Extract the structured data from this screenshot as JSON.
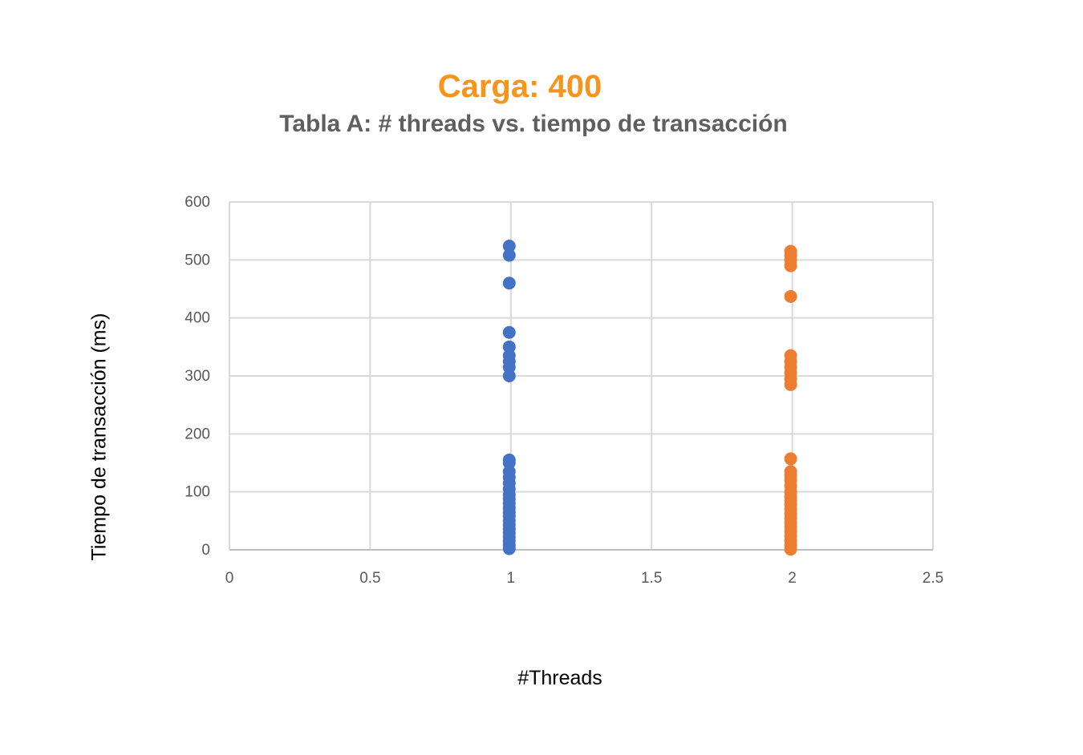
{
  "chart_data": {
    "type": "scatter",
    "title": "Carga: 400",
    "subtitle": "Tabla A: # threads vs. tiempo de transacción",
    "xlabel": "#Threads",
    "ylabel": "Tiempo de transacción (ms)",
    "xlim": [
      0,
      2.5
    ],
    "ylim": [
      0,
      600
    ],
    "x_ticks": [
      "0",
      "0.5",
      "1",
      "1.5",
      "2",
      "2.5"
    ],
    "y_ticks": [
      "0",
      "100",
      "200",
      "300",
      "400",
      "500",
      "600"
    ],
    "grid": true,
    "legend": "none",
    "series": [
      {
        "color": "#4472c4",
        "points": [
          [
            1,
            524
          ],
          [
            1,
            508
          ],
          [
            1,
            460
          ],
          [
            1,
            375
          ],
          [
            1,
            350
          ],
          [
            1,
            335
          ],
          [
            1,
            325
          ],
          [
            1,
            315
          ],
          [
            1,
            300
          ],
          [
            1,
            155
          ],
          [
            1,
            150
          ],
          [
            1,
            135
          ],
          [
            1,
            125
          ],
          [
            1,
            115
          ],
          [
            1,
            105
          ],
          [
            1,
            95
          ],
          [
            1,
            88
          ],
          [
            1,
            80
          ],
          [
            1,
            72
          ],
          [
            1,
            65
          ],
          [
            1,
            58
          ],
          [
            1,
            50
          ],
          [
            1,
            43
          ],
          [
            1,
            36
          ],
          [
            1,
            29
          ],
          [
            1,
            22
          ],
          [
            1,
            15
          ],
          [
            1,
            8
          ],
          [
            1,
            2
          ]
        ]
      },
      {
        "color": "#ed7d31",
        "points": [
          [
            2,
            515
          ],
          [
            2,
            508
          ],
          [
            2,
            500
          ],
          [
            2,
            490
          ],
          [
            2,
            437
          ],
          [
            2,
            335
          ],
          [
            2,
            325
          ],
          [
            2,
            315
          ],
          [
            2,
            305
          ],
          [
            2,
            295
          ],
          [
            2,
            285
          ],
          [
            2,
            157
          ],
          [
            2,
            135
          ],
          [
            2,
            128
          ],
          [
            2,
            120
          ],
          [
            2,
            110
          ],
          [
            2,
            100
          ],
          [
            2,
            92
          ],
          [
            2,
            85
          ],
          [
            2,
            78
          ],
          [
            2,
            70
          ],
          [
            2,
            62
          ],
          [
            2,
            55
          ],
          [
            2,
            47
          ],
          [
            2,
            40
          ],
          [
            2,
            32
          ],
          [
            2,
            24
          ],
          [
            2,
            16
          ],
          [
            2,
            8
          ],
          [
            2,
            1
          ]
        ]
      }
    ]
  }
}
